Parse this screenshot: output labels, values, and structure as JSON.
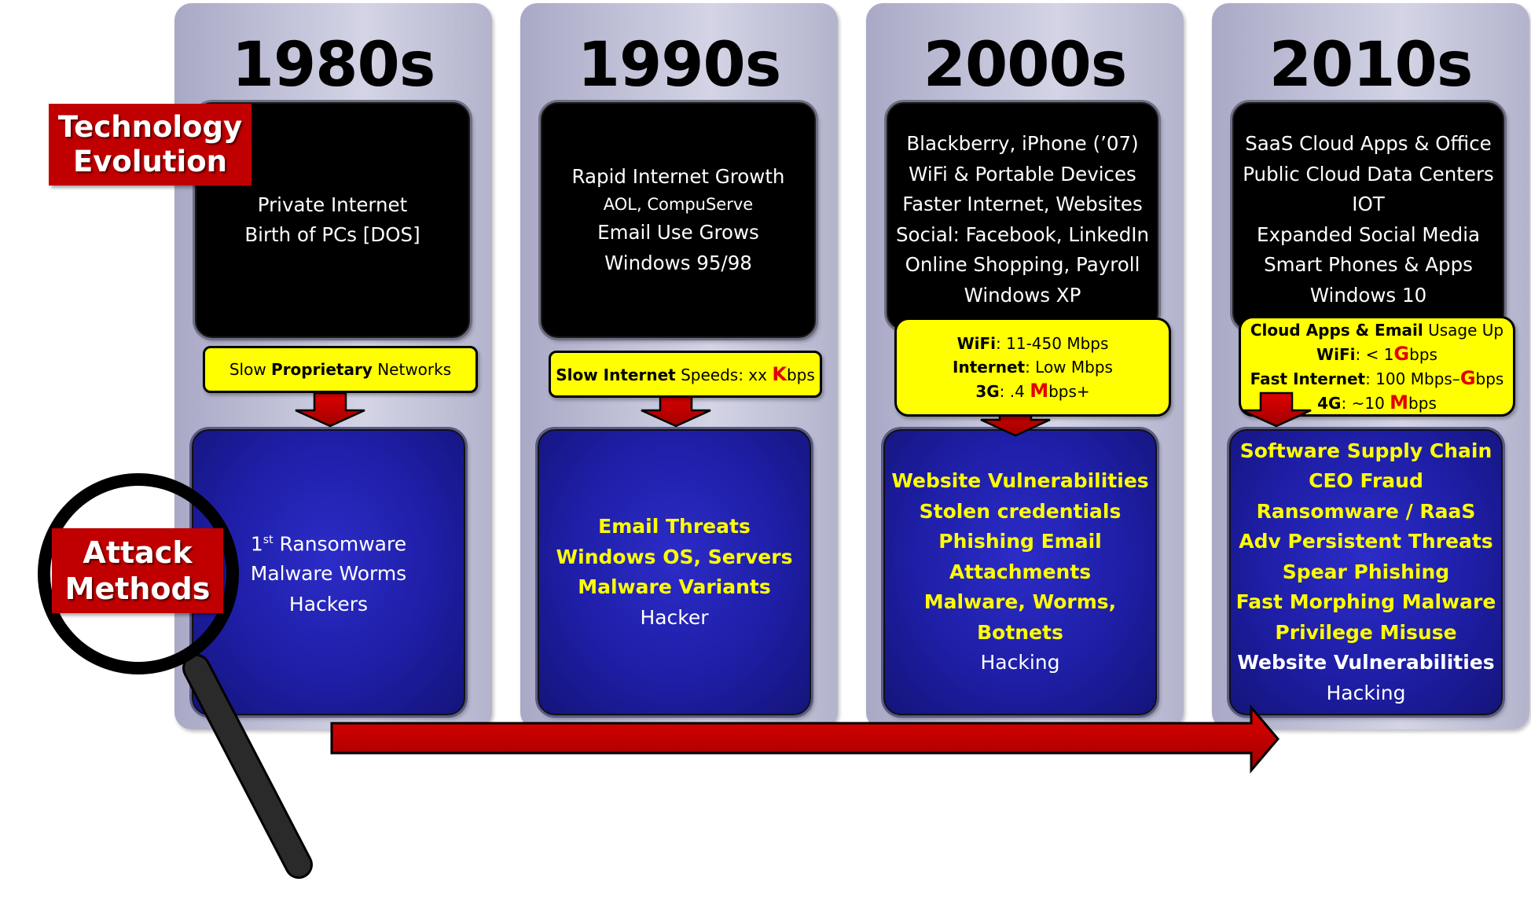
{
  "labels": {
    "technology": [
      "Technology",
      "Evolution"
    ],
    "attack": [
      "Attack",
      "Methods"
    ]
  },
  "columns": [
    {
      "decade": "1980s",
      "tech": [
        "Private Internet",
        "Birth of PCs [DOS]"
      ],
      "network": "Slow Proprietary Networks",
      "attacks": [
        "Ransomware",
        "Malware Worms",
        "Hackers"
      ],
      "first_prefix": "1",
      "first_sup": "st"
    },
    {
      "decade": "1990s",
      "tech": [
        "Rapid Internet Growth",
        "AOL, CompuServe",
        "Email Use Grows",
        "Windows 95/98"
      ],
      "network": "Slow Internet Speeds: xx Kbps",
      "attacks": [
        "Email Threats",
        "Windows OS, Servers",
        "Malware Variants",
        "Hacker"
      ]
    },
    {
      "decade": "2000s",
      "tech": [
        "Blackberry, iPhone (’07)",
        "WiFi & Portable Devices",
        "Faster Internet, Websites",
        "Social: Facebook, LinkedIn",
        "Online Shopping, Payroll",
        "Windows XP"
      ],
      "network": [
        "WiFi: 11-450 Mbps",
        "Internet:  Low Mbps",
        "3G: .4 Mbps+"
      ],
      "attacks": [
        "Website Vulnerabilities",
        "Stolen credentials",
        "Phishing Email",
        "Attachments",
        "Malware, Worms, Botnets",
        "Hacking"
      ]
    },
    {
      "decade": "2010s",
      "tech": [
        "SaaS Cloud Apps & Office",
        "Public Cloud Data Centers",
        "IOT",
        "Expanded Social Media",
        "Smart Phones & Apps",
        "Windows 10"
      ],
      "network": [
        "Cloud Apps & Email Usage Up",
        "WiFi: < 1Gbps",
        "Fast Internet: 100 Mbps–Gbps",
        "4G: ~10 Mbps"
      ],
      "attacks": [
        "Software Supply Chain",
        "CEO Fraud",
        "Ransomware / RaaS",
        "Adv Persistent Threats",
        "Spear Phishing",
        "Fast Morphing Malware",
        "Privilege Misuse",
        "Website Vulnerabilities",
        "Hacking"
      ]
    }
  ],
  "net_parts": {
    "c1": {
      "a": "Slow ",
      "b": "Proprietary",
      "c": " Networks"
    },
    "c2": {
      "a": "Slow Internet",
      "b": " Speeds: xx ",
      "k": "K",
      "c": "bps"
    },
    "c3l1": {
      "a": "WiFi",
      "b": ": 11-450 Mbps"
    },
    "c3l2": {
      "a": "Internet",
      "b": ":  Low Mbps"
    },
    "c3l3": {
      "a": "3G",
      "b": ": .4 ",
      "m": "M",
      "c": "bps+"
    },
    "c4l1": {
      "a": "Cloud Apps & Email",
      "b": " Usage Up"
    },
    "c4l2": {
      "a": "WiFi",
      "b": ": < 1",
      "g": "G",
      "c": "bps"
    },
    "c4l3": {
      "a": "Fast Internet",
      "b": ": 100 Mbps–",
      "g": "G",
      "c": "bps"
    },
    "c4l4": {
      "a": "4G",
      "b": ": ~10 ",
      "m": "M",
      "c": "bps"
    }
  },
  "colors": {
    "red": "#c00000",
    "yellow": "#ffff00",
    "navy": "#1e1ea6",
    "black": "#000000"
  },
  "icons": [
    "magnifying-glass-icon",
    "down-arrow-icon",
    "timeline-arrow-icon"
  ]
}
